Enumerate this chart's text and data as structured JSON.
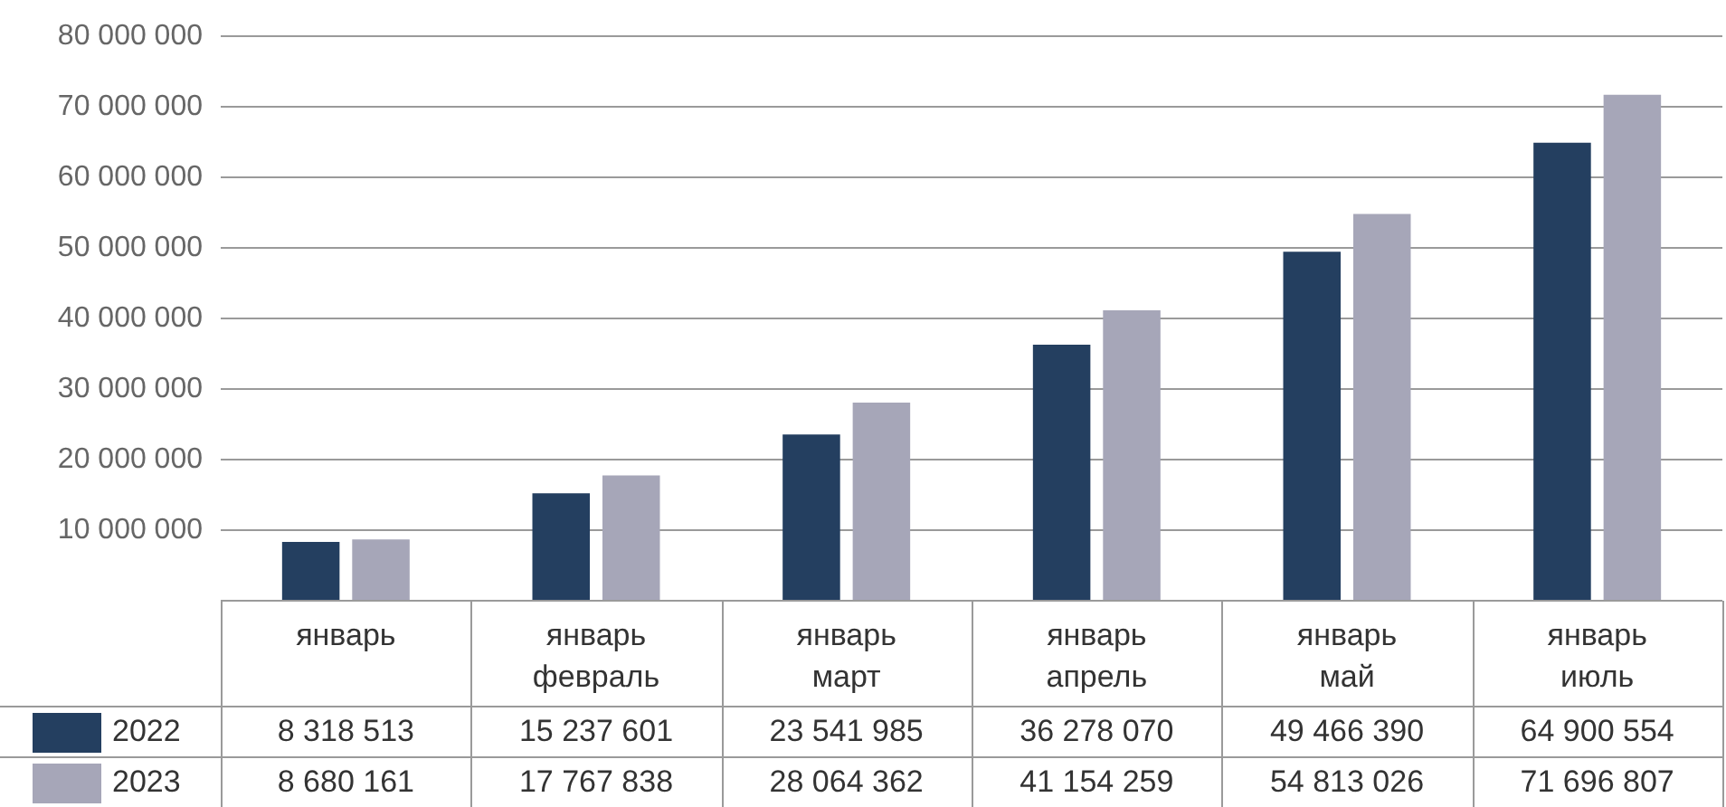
{
  "chart_data": {
    "type": "bar",
    "categories": [
      "январь",
      "январь\nфевраль",
      "январь\nмарт",
      "январь\nапрель",
      "январь\nмай",
      "январь\nиюль"
    ],
    "series": [
      {
        "name": "2022",
        "color": "#243f60",
        "values": [
          8318513,
          15237601,
          23541985,
          36278070,
          49466390,
          64900554
        ],
        "value_labels": [
          "8 318 513",
          "15 237 601",
          "23 541 985",
          "36 278 070",
          "49 466 390",
          "64 900 554"
        ]
      },
      {
        "name": "2023",
        "color": "#a6a6b8",
        "values": [
          8680161,
          17767838,
          28064362,
          41154259,
          54813026,
          71696807
        ],
        "value_labels": [
          "8 680 161",
          "17 767 838",
          "28 064 362",
          "41 154 259",
          "54 813 026",
          "71 696 807"
        ]
      }
    ],
    "ylim": [
      0,
      80000000
    ],
    "yticks": [
      {
        "value": 0,
        "label": null
      },
      {
        "value": 10000000,
        "label": "10 000 000"
      },
      {
        "value": 20000000,
        "label": "20 000 000"
      },
      {
        "value": 30000000,
        "label": "30 000 000"
      },
      {
        "value": 40000000,
        "label": "40 000 000"
      },
      {
        "value": 50000000,
        "label": "50 000 000"
      },
      {
        "value": 60000000,
        "label": "60 000 000"
      },
      {
        "value": 70000000,
        "label": "70 000 000"
      },
      {
        "value": 80000000,
        "label": "80 000 000"
      }
    ],
    "grid": "y",
    "legend": "bottom"
  }
}
